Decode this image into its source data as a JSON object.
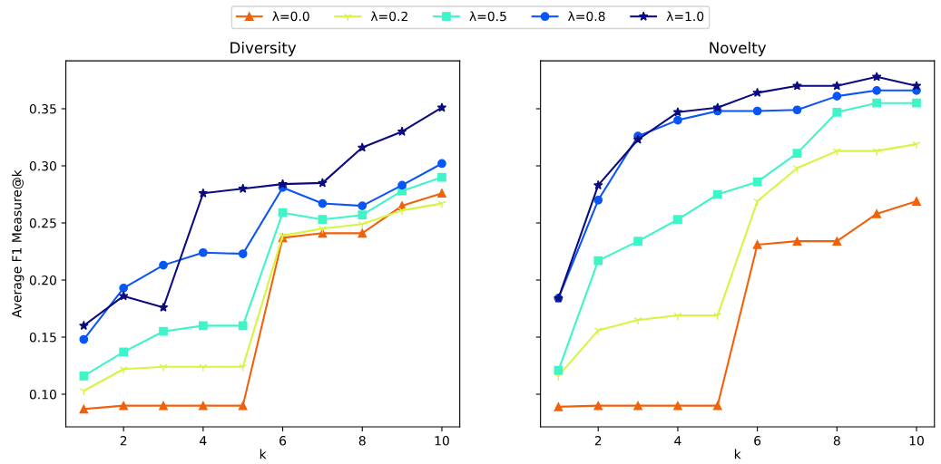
{
  "chart_data": [
    {
      "type": "line",
      "title": "Diversity",
      "xlabel": "k",
      "ylabel": "Average F1 Measure@k",
      "x": [
        1,
        2,
        3,
        4,
        5,
        6,
        7,
        8,
        9,
        10
      ],
      "xlim": [
        0.55,
        10.45
      ],
      "xticks": [
        2,
        4,
        6,
        8,
        10
      ],
      "ylim": [
        0.0714,
        0.392
      ],
      "yticks": [
        {
          "value": 0.1,
          "label": "0.10"
        },
        {
          "value": 0.15,
          "label": "0.15"
        },
        {
          "value": 0.2,
          "label": "0.20"
        },
        {
          "value": 0.25,
          "label": "0.25"
        },
        {
          "value": 0.3,
          "label": "0.30"
        },
        {
          "value": 0.35,
          "label": "0.35"
        }
      ],
      "grid": false,
      "legend": "top",
      "series": [
        {
          "name": "λ=0.0",
          "color": "#f0620a",
          "marker": "triangle",
          "values": [
            0.087,
            0.09,
            0.09,
            0.09,
            0.09,
            0.237,
            0.241,
            0.241,
            0.265,
            0.276
          ]
        },
        {
          "name": "λ=0.2",
          "color": "#d6f542",
          "marker": "cross",
          "values": [
            0.103,
            0.122,
            0.124,
            0.124,
            0.124,
            0.239,
            0.245,
            0.249,
            0.261,
            0.267
          ]
        },
        {
          "name": "λ=0.5",
          "color": "#3ef5c8",
          "marker": "square",
          "values": [
            0.116,
            0.137,
            0.155,
            0.16,
            0.16,
            0.259,
            0.253,
            0.257,
            0.278,
            0.29
          ]
        },
        {
          "name": "λ=0.8",
          "color": "#0a55f5",
          "marker": "circle",
          "values": [
            0.148,
            0.193,
            0.213,
            0.224,
            0.223,
            0.281,
            0.267,
            0.265,
            0.283,
            0.302
          ]
        },
        {
          "name": "λ=1.0",
          "color": "#0b0b80",
          "marker": "star",
          "values": [
            0.16,
            0.186,
            0.176,
            0.276,
            0.28,
            0.284,
            0.285,
            0.316,
            0.33,
            0.351
          ]
        }
      ]
    },
    {
      "type": "line",
      "title": "Novelty",
      "xlabel": "k",
      "x": [
        1,
        2,
        3,
        4,
        5,
        6,
        7,
        8,
        9,
        10
      ],
      "xlim": [
        0.55,
        10.45
      ],
      "xticks": [
        2,
        4,
        6,
        8,
        10
      ],
      "ylim": [
        0.0714,
        0.392
      ],
      "yticks": [
        {
          "value": 0.1,
          "label": null
        },
        {
          "value": 0.15,
          "label": null
        },
        {
          "value": 0.2,
          "label": null
        },
        {
          "value": 0.25,
          "label": null
        },
        {
          "value": 0.3,
          "label": null
        },
        {
          "value": 0.35,
          "label": null
        }
      ],
      "tick_labels": "x",
      "grid": false,
      "series": [
        {
          "color": "#f0620a",
          "marker": "triangle",
          "values": [
            0.089,
            0.09,
            0.09,
            0.09,
            0.09,
            0.231,
            0.234,
            0.234,
            0.258,
            0.269
          ]
        },
        {
          "color": "#d6f542",
          "marker": "cross",
          "values": [
            0.116,
            0.156,
            0.165,
            0.169,
            0.169,
            0.269,
            0.298,
            0.313,
            0.313,
            0.319
          ]
        },
        {
          "color": "#3ef5c8",
          "marker": "square",
          "values": [
            0.121,
            0.217,
            0.234,
            0.253,
            0.275,
            0.286,
            0.311,
            0.347,
            0.355,
            0.355
          ]
        },
        {
          "color": "#0a55f5",
          "marker": "circle",
          "values": [
            0.184,
            0.27,
            0.326,
            0.34,
            0.348,
            0.348,
            0.349,
            0.361,
            0.366,
            0.366
          ]
        },
        {
          "color": "#0b0b80",
          "marker": "star",
          "values": [
            0.184,
            0.283,
            0.323,
            0.347,
            0.351,
            0.364,
            0.37,
            0.37,
            0.378,
            0.37
          ]
        }
      ]
    }
  ]
}
